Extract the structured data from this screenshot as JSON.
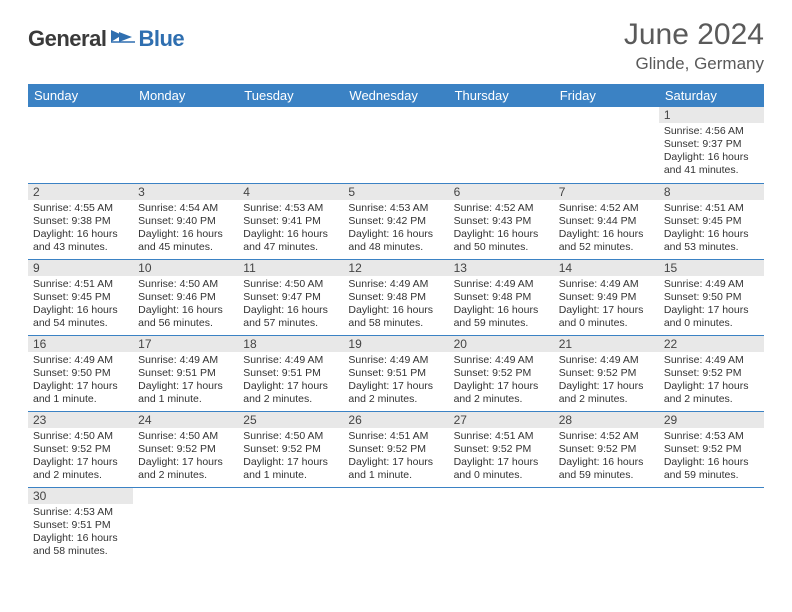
{
  "logo": {
    "text1": "General",
    "text2": "Blue",
    "flag_color": "#2f6fb0"
  },
  "title": "June 2024",
  "location": "Glinde, Germany",
  "colors": {
    "header_bg": "#3b82c4",
    "header_fg": "#ffffff",
    "daynum_bg": "#e8e8e8",
    "row_border": "#3b82c4"
  },
  "weekdays": [
    "Sunday",
    "Monday",
    "Tuesday",
    "Wednesday",
    "Thursday",
    "Friday",
    "Saturday"
  ],
  "weeks": [
    [
      null,
      null,
      null,
      null,
      null,
      null,
      {
        "n": "1",
        "sr": "4:56 AM",
        "ss": "9:37 PM",
        "dl": "16 hours and 41 minutes."
      }
    ],
    [
      {
        "n": "2",
        "sr": "4:55 AM",
        "ss": "9:38 PM",
        "dl": "16 hours and 43 minutes."
      },
      {
        "n": "3",
        "sr": "4:54 AM",
        "ss": "9:40 PM",
        "dl": "16 hours and 45 minutes."
      },
      {
        "n": "4",
        "sr": "4:53 AM",
        "ss": "9:41 PM",
        "dl": "16 hours and 47 minutes."
      },
      {
        "n": "5",
        "sr": "4:53 AM",
        "ss": "9:42 PM",
        "dl": "16 hours and 48 minutes."
      },
      {
        "n": "6",
        "sr": "4:52 AM",
        "ss": "9:43 PM",
        "dl": "16 hours and 50 minutes."
      },
      {
        "n": "7",
        "sr": "4:52 AM",
        "ss": "9:44 PM",
        "dl": "16 hours and 52 minutes."
      },
      {
        "n": "8",
        "sr": "4:51 AM",
        "ss": "9:45 PM",
        "dl": "16 hours and 53 minutes."
      }
    ],
    [
      {
        "n": "9",
        "sr": "4:51 AM",
        "ss": "9:45 PM",
        "dl": "16 hours and 54 minutes."
      },
      {
        "n": "10",
        "sr": "4:50 AM",
        "ss": "9:46 PM",
        "dl": "16 hours and 56 minutes."
      },
      {
        "n": "11",
        "sr": "4:50 AM",
        "ss": "9:47 PM",
        "dl": "16 hours and 57 minutes."
      },
      {
        "n": "12",
        "sr": "4:49 AM",
        "ss": "9:48 PM",
        "dl": "16 hours and 58 minutes."
      },
      {
        "n": "13",
        "sr": "4:49 AM",
        "ss": "9:48 PM",
        "dl": "16 hours and 59 minutes."
      },
      {
        "n": "14",
        "sr": "4:49 AM",
        "ss": "9:49 PM",
        "dl": "17 hours and 0 minutes."
      },
      {
        "n": "15",
        "sr": "4:49 AM",
        "ss": "9:50 PM",
        "dl": "17 hours and 0 minutes."
      }
    ],
    [
      {
        "n": "16",
        "sr": "4:49 AM",
        "ss": "9:50 PM",
        "dl": "17 hours and 1 minute."
      },
      {
        "n": "17",
        "sr": "4:49 AM",
        "ss": "9:51 PM",
        "dl": "17 hours and 1 minute."
      },
      {
        "n": "18",
        "sr": "4:49 AM",
        "ss": "9:51 PM",
        "dl": "17 hours and 2 minutes."
      },
      {
        "n": "19",
        "sr": "4:49 AM",
        "ss": "9:51 PM",
        "dl": "17 hours and 2 minutes."
      },
      {
        "n": "20",
        "sr": "4:49 AM",
        "ss": "9:52 PM",
        "dl": "17 hours and 2 minutes."
      },
      {
        "n": "21",
        "sr": "4:49 AM",
        "ss": "9:52 PM",
        "dl": "17 hours and 2 minutes."
      },
      {
        "n": "22",
        "sr": "4:49 AM",
        "ss": "9:52 PM",
        "dl": "17 hours and 2 minutes."
      }
    ],
    [
      {
        "n": "23",
        "sr": "4:50 AM",
        "ss": "9:52 PM",
        "dl": "17 hours and 2 minutes."
      },
      {
        "n": "24",
        "sr": "4:50 AM",
        "ss": "9:52 PM",
        "dl": "17 hours and 2 minutes."
      },
      {
        "n": "25",
        "sr": "4:50 AM",
        "ss": "9:52 PM",
        "dl": "17 hours and 1 minute."
      },
      {
        "n": "26",
        "sr": "4:51 AM",
        "ss": "9:52 PM",
        "dl": "17 hours and 1 minute."
      },
      {
        "n": "27",
        "sr": "4:51 AM",
        "ss": "9:52 PM",
        "dl": "17 hours and 0 minutes."
      },
      {
        "n": "28",
        "sr": "4:52 AM",
        "ss": "9:52 PM",
        "dl": "16 hours and 59 minutes."
      },
      {
        "n": "29",
        "sr": "4:53 AM",
        "ss": "9:52 PM",
        "dl": "16 hours and 59 minutes."
      }
    ],
    [
      {
        "n": "30",
        "sr": "4:53 AM",
        "ss": "9:51 PM",
        "dl": "16 hours and 58 minutes."
      },
      null,
      null,
      null,
      null,
      null,
      null
    ]
  ],
  "labels": {
    "sunrise": "Sunrise:",
    "sunset": "Sunset:",
    "daylight": "Daylight:"
  }
}
